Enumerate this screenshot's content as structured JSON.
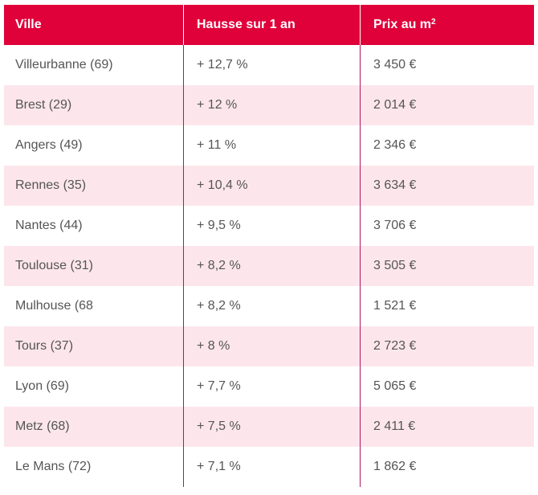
{
  "table": {
    "headers": {
      "ville": "Ville",
      "hausse": "Hausse sur 1 an",
      "prix": "Prix au m",
      "prix_sup": "2"
    },
    "rows": [
      {
        "ville": "Villeurbanne (69)",
        "hausse": "+ 12,7 %",
        "prix": "3 450 €"
      },
      {
        "ville": "Brest (29)",
        "hausse": "+ 12 %",
        "prix": "2 014 €"
      },
      {
        "ville": "Angers (49)",
        "hausse": "+ 11 %",
        "prix": "2 346 €"
      },
      {
        "ville": "Rennes (35)",
        "hausse": "+ 10,4 %",
        "prix": "3 634 €"
      },
      {
        "ville": "Nantes (44)",
        "hausse": "+ 9,5 %",
        "prix": "3 706 €"
      },
      {
        "ville": "Toulouse (31)",
        "hausse": "+ 8,2 %",
        "prix": "3 505 €"
      },
      {
        "ville": "Mulhouse (68",
        "hausse": "+ 8,2 %",
        "prix": "1 521 €"
      },
      {
        "ville": "Tours (37)",
        "hausse": "+ 8 %",
        "prix": "2 723 €"
      },
      {
        "ville": "Lyon (69)",
        "hausse": "+ 7,7 %",
        "prix": "5 065 €"
      },
      {
        "ville": "Metz (68)",
        "hausse": "+ 7,5 %",
        "prix": "2 411 €"
      },
      {
        "ville": "Le Mans (72)",
        "hausse": "+ 7,1 %",
        "prix": "1 862 €"
      }
    ]
  },
  "colors": {
    "header_bg": "#e0003a",
    "stripe_bg": "#fce6ec",
    "divider": "#b3126a",
    "text": "#555555"
  }
}
